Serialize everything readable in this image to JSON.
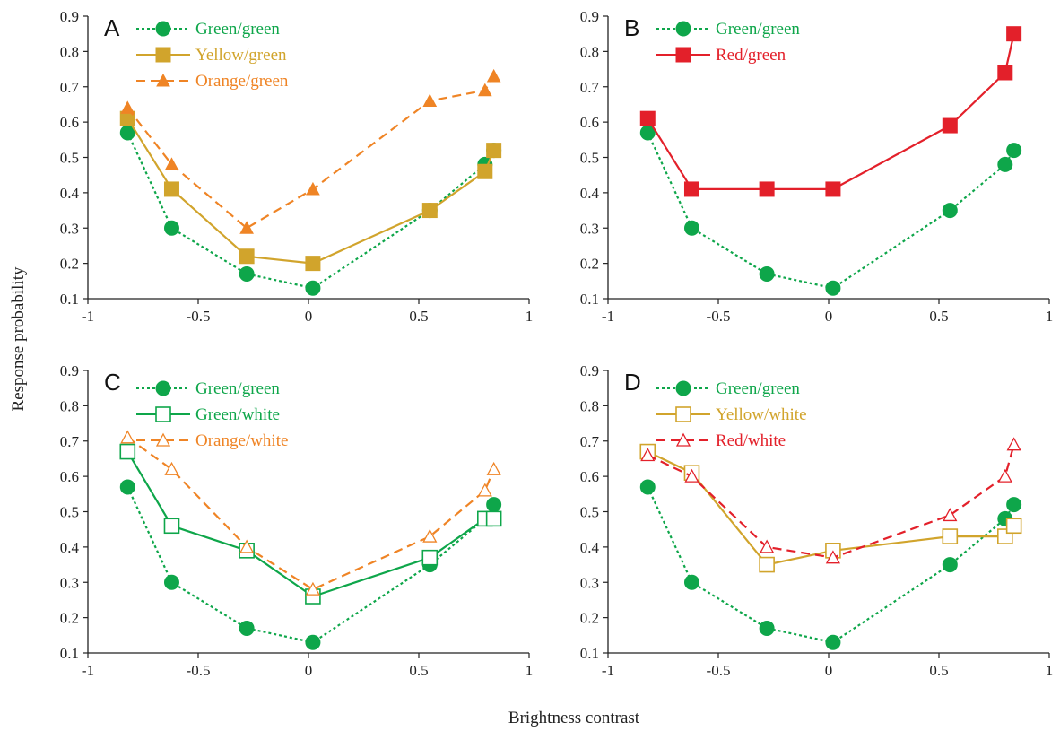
{
  "figure": {
    "ylabel": "Response probability",
    "xlabel": "Brightness contrast"
  },
  "colors": {
    "green": "#0ea64a",
    "yellow": "#d1a42c",
    "orange": "#ef8425",
    "red": "#e3202a"
  },
  "chart_data": [
    {
      "type": "line",
      "panel_label": "A",
      "xlim": [
        -1,
        1
      ],
      "ylim": [
        0.1,
        0.9
      ],
      "x_ticks": [
        "-1",
        "-0.5",
        "0",
        "0.5",
        "1"
      ],
      "y_ticks": [
        "0.1",
        "0.2",
        "0.3",
        "0.4",
        "0.5",
        "0.6",
        "0.7",
        "0.8",
        "0.9"
      ],
      "legend_position": "top-center",
      "series": [
        {
          "name": "Green/green",
          "color": "#0ea64a",
          "line": "dotted",
          "marker": "circle-filled",
          "x": [
            -0.82,
            -0.62,
            -0.28,
            0.02,
            0.55,
            0.8,
            0.84
          ],
          "y": [
            0.57,
            0.3,
            0.17,
            0.13,
            0.35,
            0.48,
            0.52
          ]
        },
        {
          "name": "Yellow/green",
          "color": "#d1a42c",
          "line": "solid",
          "marker": "square-filled",
          "x": [
            -0.82,
            -0.62,
            -0.28,
            0.02,
            0.55,
            0.8,
            0.84
          ],
          "y": [
            0.61,
            0.41,
            0.22,
            0.2,
            0.35,
            0.46,
            0.52
          ]
        },
        {
          "name": "Orange/green",
          "color": "#ef8425",
          "line": "dashed",
          "marker": "triangle-filled",
          "x": [
            -0.82,
            -0.62,
            -0.28,
            0.02,
            0.55,
            0.8,
            0.84
          ],
          "y": [
            0.64,
            0.48,
            0.3,
            0.41,
            0.66,
            0.69,
            0.73
          ]
        }
      ]
    },
    {
      "type": "line",
      "panel_label": "B",
      "xlim": [
        -1,
        1
      ],
      "ylim": [
        0.1,
        0.9
      ],
      "x_ticks": [
        "-1",
        "-0.5",
        "0",
        "0.5",
        "1"
      ],
      "y_ticks": [
        "0.1",
        "0.2",
        "0.3",
        "0.4",
        "0.5",
        "0.6",
        "0.7",
        "0.8",
        "0.9"
      ],
      "legend_position": "top-center",
      "series": [
        {
          "name": "Green/green",
          "color": "#0ea64a",
          "line": "dotted",
          "marker": "circle-filled",
          "x": [
            -0.82,
            -0.62,
            -0.28,
            0.02,
            0.55,
            0.8,
            0.84
          ],
          "y": [
            0.57,
            0.3,
            0.17,
            0.13,
            0.35,
            0.48,
            0.52
          ]
        },
        {
          "name": "Red/green",
          "color": "#e3202a",
          "line": "solid",
          "marker": "square-filled",
          "x": [
            -0.82,
            -0.62,
            -0.28,
            0.02,
            0.55,
            0.8,
            0.84
          ],
          "y": [
            0.61,
            0.41,
            0.41,
            0.41,
            0.59,
            0.74,
            0.85
          ]
        }
      ]
    },
    {
      "type": "line",
      "panel_label": "C",
      "xlim": [
        -1,
        1
      ],
      "ylim": [
        0.1,
        0.9
      ],
      "x_ticks": [
        "-1",
        "-0.5",
        "0",
        "0.5",
        "1"
      ],
      "y_ticks": [
        "0.1",
        "0.2",
        "0.3",
        "0.4",
        "0.5",
        "0.6",
        "0.7",
        "0.8",
        "0.9"
      ],
      "legend_position": "top-center",
      "series": [
        {
          "name": "Green/green",
          "color": "#0ea64a",
          "line": "dotted",
          "marker": "circle-filled",
          "x": [
            -0.82,
            -0.62,
            -0.28,
            0.02,
            0.55,
            0.8,
            0.84
          ],
          "y": [
            0.57,
            0.3,
            0.17,
            0.13,
            0.35,
            0.48,
            0.52
          ]
        },
        {
          "name": "Green/white",
          "color": "#0ea64a",
          "line": "solid",
          "marker": "square-open",
          "x": [
            -0.82,
            -0.62,
            -0.28,
            0.02,
            0.55,
            0.8,
            0.84
          ],
          "y": [
            0.67,
            0.46,
            0.39,
            0.26,
            0.37,
            0.48,
            0.48
          ]
        },
        {
          "name": "Orange/white",
          "color": "#ef8425",
          "line": "dashed",
          "marker": "triangle-open",
          "x": [
            -0.82,
            -0.62,
            -0.28,
            0.02,
            0.55,
            0.8,
            0.84
          ],
          "y": [
            0.71,
            0.62,
            0.4,
            0.28,
            0.43,
            0.56,
            0.62
          ]
        }
      ]
    },
    {
      "type": "line",
      "panel_label": "D",
      "xlim": [
        -1,
        1
      ],
      "ylim": [
        0.1,
        0.9
      ],
      "x_ticks": [
        "-1",
        "-0.5",
        "0",
        "0.5",
        "1"
      ],
      "y_ticks": [
        "0.1",
        "0.2",
        "0.3",
        "0.4",
        "0.5",
        "0.6",
        "0.7",
        "0.8",
        "0.9"
      ],
      "legend_position": "top-center",
      "series": [
        {
          "name": "Green/green",
          "color": "#0ea64a",
          "line": "dotted",
          "marker": "circle-filled",
          "x": [
            -0.82,
            -0.62,
            -0.28,
            0.02,
            0.55,
            0.8,
            0.84
          ],
          "y": [
            0.57,
            0.3,
            0.17,
            0.13,
            0.35,
            0.48,
            0.52
          ]
        },
        {
          "name": "Yellow/white",
          "color": "#d1a42c",
          "line": "solid",
          "marker": "square-open",
          "x": [
            -0.82,
            -0.62,
            -0.28,
            0.02,
            0.55,
            0.8,
            0.84
          ],
          "y": [
            0.67,
            0.61,
            0.35,
            0.39,
            0.43,
            0.43,
            0.46
          ]
        },
        {
          "name": "Red/white",
          "color": "#e3202a",
          "line": "dashed",
          "marker": "triangle-open",
          "x": [
            -0.82,
            -0.62,
            -0.28,
            0.02,
            0.55,
            0.8,
            0.84
          ],
          "y": [
            0.66,
            0.6,
            0.4,
            0.37,
            0.49,
            0.6,
            0.69
          ]
        }
      ]
    }
  ]
}
